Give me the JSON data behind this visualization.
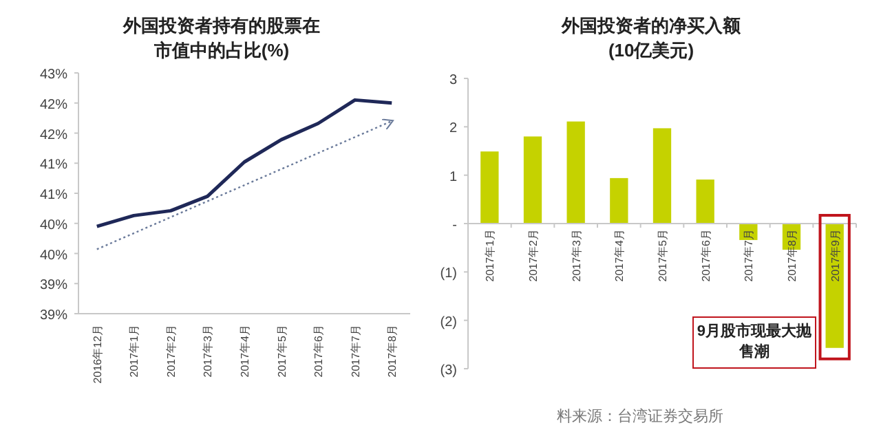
{
  "chart_data": [
    {
      "type": "line",
      "title": "外国投资者持有的股票在市值中的占比(%)",
      "categories": [
        "2016年12月",
        "2017年1月",
        "2017年2月",
        "2017年3月",
        "2017年4月",
        "2017年5月",
        "2017年6月",
        "2017年7月",
        "2017年8月"
      ],
      "ylim": [
        39,
        43
      ],
      "yticks": [
        {
          "value": 39,
          "label": "39%"
        },
        {
          "value": 39.5,
          "label": "39%"
        },
        {
          "value": 40,
          "label": "40%"
        },
        {
          "value": 40.5,
          "label": "40%"
        },
        {
          "value": 41,
          "label": "41%"
        },
        {
          "value": 41.5,
          "label": "41%"
        },
        {
          "value": 42,
          "label": "42%"
        },
        {
          "value": 42.5,
          "label": "42%"
        },
        {
          "value": 43,
          "label": "43%"
        }
      ],
      "series": [
        {
          "color": "#1f2858",
          "values": [
            40.45,
            40.63,
            40.71,
            40.95,
            41.52,
            41.89,
            42.16,
            42.55,
            42.5
          ]
        },
        {
          "type": "line",
          "color": "#6a7a9a",
          "line_style": "dotted",
          "x": [
            "2016年12月",
            "2017年8月"
          ],
          "values": [
            40.07,
            42.2
          ]
        }
      ]
    },
    {
      "type": "bar",
      "title": "外国投资者的净买入额(10亿美元)",
      "categories": [
        "2017年1月",
        "2017年2月",
        "2017年3月",
        "2017年4月",
        "2017年5月",
        "2017年6月",
        "2017年7月",
        "2017年8月",
        "2017年9月"
      ],
      "values": [
        1.49,
        1.8,
        2.11,
        0.94,
        1.97,
        0.91,
        -0.34,
        -0.54,
        -2.57
      ],
      "color": "#c5d200",
      "ylim": [
        -3,
        3
      ],
      "yticks": [
        {
          "value": -3,
          "label": "(3)"
        },
        {
          "value": -2,
          "label": "(2)"
        },
        {
          "value": -1,
          "label": "(1)"
        },
        {
          "value": 0,
          "label": "-"
        },
        1,
        2,
        3
      ],
      "annotations": [
        {
          "text": "9月股市现最大抛售潮",
          "x": "2017年9月",
          "y": -2.57
        },
        "料来源：台湾证券交易所"
      ]
    }
  ]
}
